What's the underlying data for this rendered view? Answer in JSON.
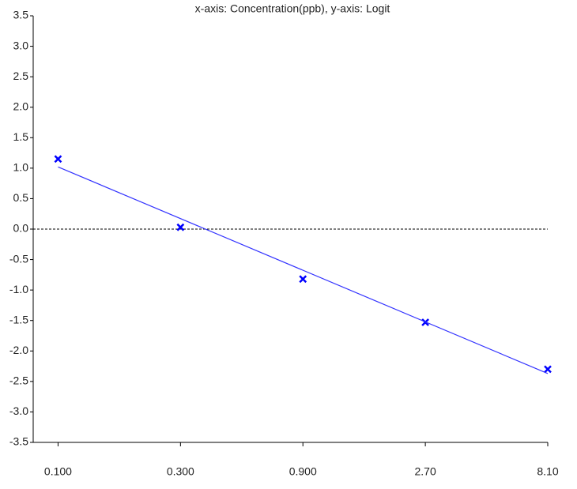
{
  "chart_data": {
    "type": "scatter",
    "title": "x-axis: Concentration(ppb), y-axis: Logit",
    "x": [
      0.1,
      0.3,
      0.9,
      2.7,
      8.1
    ],
    "xscale": "log",
    "series": [
      {
        "color": "#0000ff",
        "marker": "x",
        "values": [
          1.15,
          0.03,
          -0.82,
          -1.53,
          -2.3
        ]
      },
      {
        "color": "#3333ff",
        "marker": "line",
        "x": [
          0.1,
          8.1
        ],
        "values": [
          1.02,
          -2.37
        ]
      }
    ],
    "reference_line": {
      "y": 0,
      "style": "dashed",
      "color": "#000000"
    },
    "xlim": [
      0.08,
      8.1
    ],
    "xticks": [
      {
        "value": 0.1,
        "label": "0.100"
      },
      {
        "value": 0.3,
        "label": "0.300"
      },
      {
        "value": 0.9,
        "label": "0.900"
      },
      {
        "value": 2.7,
        "label": "2.70"
      },
      {
        "value": 8.1,
        "label": "8.10"
      }
    ],
    "ylim": [
      -3.5,
      3.5
    ],
    "yticks": [
      3.5,
      {
        "value": 3,
        "label": "3.0"
      },
      2.5,
      {
        "value": 2,
        "label": "2.0"
      },
      1.5,
      {
        "value": 1,
        "label": "1.0"
      },
      0.5,
      {
        "value": 0,
        "label": "0.0"
      },
      -0.5,
      {
        "value": -1,
        "label": "-1.0"
      },
      -1.5,
      {
        "value": -2,
        "label": "-2.0"
      },
      -2.5,
      {
        "value": -3,
        "label": "-3.0"
      },
      -3.5
    ],
    "grid": false
  }
}
